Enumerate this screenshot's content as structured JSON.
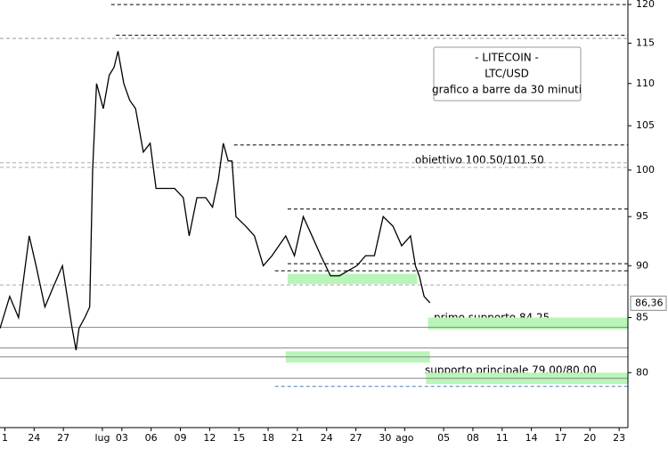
{
  "chart_data": {
    "type": "line",
    "title_lines": [
      "- LITECOIN -",
      "LTC/USD",
      "grafico a barre da 30 minuti"
    ],
    "series": [
      {
        "name": "LTC/USD",
        "color": "#000000",
        "x": [
          -0.5,
          0.5,
          1.4,
          2.5,
          3.2,
          4.1,
          5.0,
          5.9,
          6.9,
          7.3,
          7.6,
          8.2,
          8.7,
          9.0,
          9.4,
          10.1,
          10.7,
          11.2,
          11.6,
          12.2,
          12.8,
          13.4,
          14.2,
          14.9,
          15.5,
          16.5,
          17.4,
          18.3,
          18.9,
          19.7,
          20.6,
          21.3,
          21.9,
          22.4,
          22.9,
          23.3,
          23.7,
          24.7,
          25.6,
          26.5,
          27.4,
          28.1,
          28.8,
          29.7,
          30.6,
          31.5,
          32.4,
          33.4,
          34.3,
          35.2,
          36.1,
          37.0,
          37.9,
          38.8,
          39.8,
          40.7,
          41.6,
          42.1,
          42.5,
          43.0,
          43.6
        ],
        "values": [
          84,
          87,
          85,
          93,
          90,
          86,
          88,
          90,
          84,
          82,
          84,
          85,
          86,
          100,
          110,
          107,
          111,
          112,
          114,
          110,
          108,
          107,
          102,
          103,
          98,
          98,
          98,
          97,
          93,
          97,
          97,
          96,
          99,
          103,
          101,
          101,
          95,
          94,
          93,
          90,
          91,
          92,
          93,
          91,
          95,
          93,
          91,
          89,
          89,
          89.5,
          90,
          91,
          91,
          95,
          94,
          92,
          93,
          90,
          89,
          87,
          86.4
        ]
      }
    ],
    "last_price": 86.36,
    "last_price_label": "86,36",
    "xlim": [
      -0.5,
      63.9
    ],
    "ylim": [
      75.3,
      120.6
    ],
    "log_scale": true,
    "xticks": [
      {
        "value": 0,
        "label": "1"
      },
      {
        "value": 3,
        "label": "24"
      },
      {
        "value": 6,
        "label": "27"
      },
      {
        "value": 10,
        "label": "lug"
      },
      {
        "value": 12,
        "label": "03"
      },
      {
        "value": 15,
        "label": "06"
      },
      {
        "value": 18,
        "label": "09"
      },
      {
        "value": 21,
        "label": "12"
      },
      {
        "value": 24,
        "label": "15"
      },
      {
        "value": 27,
        "label": "18"
      },
      {
        "value": 30,
        "label": "21"
      },
      {
        "value": 33,
        "label": "24"
      },
      {
        "value": 36,
        "label": "27"
      },
      {
        "value": 39,
        "label": "30"
      },
      {
        "value": 41,
        "label": "ago"
      },
      {
        "value": 45,
        "label": "05"
      },
      {
        "value": 48,
        "label": "08"
      },
      {
        "value": 51,
        "label": "11"
      },
      {
        "value": 54,
        "label": "14"
      },
      {
        "value": 57,
        "label": "17"
      },
      {
        "value": 60,
        "label": "20"
      },
      {
        "value": 63,
        "label": "23"
      }
    ],
    "yticks": [
      80,
      85,
      90,
      95,
      100,
      105,
      110,
      115,
      120
    ],
    "levels": [
      {
        "value": 120,
        "from": 10.9,
        "color": "#000000",
        "dash": true
      },
      {
        "value": 116,
        "from": 11.4,
        "color": "#000000",
        "dash": true
      },
      {
        "value": 115.6,
        "from": -0.5,
        "color": "#999999",
        "dash": true
      },
      {
        "value": 102.8,
        "from": 23.5,
        "color": "#000000",
        "dash": true
      },
      {
        "value": 100.8,
        "from": -0.5,
        "color": "#aaaaaa",
        "dash": true
      },
      {
        "value": 100.3,
        "from": -0.5,
        "color": "#aaaaaa",
        "dash": true
      },
      {
        "value": 95.8,
        "from": 29,
        "color": "#000000",
        "dash": true
      },
      {
        "value": 90.2,
        "from": 29,
        "color": "#000000",
        "dash": true
      },
      {
        "value": 89.5,
        "from": 27.7,
        "color": "#000000",
        "dash": true
      },
      {
        "value": 88.1,
        "from": -0.5,
        "color": "#aaaaaa",
        "dash": true
      },
      {
        "value": 84.1,
        "from": -0.5,
        "color": "#888888",
        "dash": false
      },
      {
        "value": 82.2,
        "from": -0.5,
        "color": "#888888",
        "dash": false
      },
      {
        "value": 81.4,
        "from": -0.5,
        "color": "#888888",
        "dash": false
      },
      {
        "value": 79.5,
        "from": -0.5,
        "color": "#888888",
        "dash": false
      },
      {
        "value": 78.8,
        "from": 27.7,
        "color": "#4a7fc0",
        "dash": true
      }
    ],
    "zones": [
      {
        "low": 88.2,
        "high": 89.2,
        "from": 29,
        "to": 42.3
      },
      {
        "low": 83.9,
        "high": 85,
        "from": 43.4,
        "to": 63.9
      },
      {
        "low": 80.9,
        "high": 81.9,
        "from": 28.8,
        "to": 43.6
      },
      {
        "low": 79,
        "high": 80,
        "from": 43.2,
        "to": 63.9
      }
    ],
    "zone_color": "#b8f5b8",
    "annotations": [
      "obiettivo 100.50/101.50",
      "primo supporto 84.25",
      "supporto principale 79.00/80.00"
    ]
  }
}
